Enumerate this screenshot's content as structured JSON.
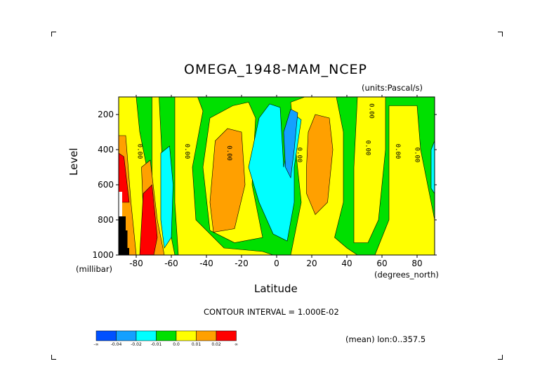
{
  "chart_data": {
    "type": "heatmap",
    "title": "OMEGA_1948-MAM_NCEP",
    "units": "(units:Pascal/s)",
    "xlabel": "Latitude",
    "x_unit_label": "(degrees_north)",
    "ylabel": "Level",
    "y_unit_label": "(millibar)",
    "xlim": [
      -90,
      90
    ],
    "ylim": [
      1000,
      100
    ],
    "x_ticks": [
      -80,
      -60,
      -40,
      -20,
      0,
      20,
      40,
      60,
      80
    ],
    "x_tick_labels": [
      "-80",
      "-60",
      "-40",
      "-20",
      "0",
      "20",
      "40",
      "60",
      "80"
    ],
    "y_ticks": [
      200,
      400,
      600,
      800,
      1000
    ],
    "y_tick_labels": [
      "200",
      "400",
      "600",
      "800",
      "1000"
    ],
    "contour_labels": [
      "0.00",
      "0.00",
      "0.00",
      "0.00",
      "0.00",
      "0.00",
      "0.00",
      "0.00"
    ],
    "contour_interval_text": "CONTOUR INTERVAL = 1.000E-02",
    "footer_text": "(mean) lon:0..357.5",
    "colorbar": {
      "colors": [
        "#0050ff",
        "#14a0ff",
        "#00ffff",
        "#00e000",
        "#ffff00",
        "#ffa000",
        "#ff0000"
      ],
      "labels": [
        "-∞",
        "-0.04",
        "-0.02",
        "-0.01",
        "0.0",
        "0.01",
        "0.02",
        "∞"
      ]
    },
    "regions": [
      {
        "name": "background",
        "value_class": "-0.01..0.0",
        "color": "#00e000"
      },
      {
        "name": "positive-band-sh-high",
        "value_class": "0.0..0.01",
        "color": "#ffff00"
      },
      {
        "name": "positive-core-sh-high",
        "value_class": "0.01..0.02",
        "color": "#ffa000"
      },
      {
        "name": "strong-positive-sh-high",
        "value_class": ">0.02",
        "color": "#ff0000"
      },
      {
        "name": "negative-core-sh-60",
        "value_class": "-0.02..-0.01",
        "color": "#00ffff"
      },
      {
        "name": "positive-core-sh-30",
        "value_class": "0.01..0.02",
        "color": "#ffa000"
      },
      {
        "name": "negative-core-equator",
        "value_class": "-0.02..-0.01",
        "color": "#00ffff"
      },
      {
        "name": "negative-peak-equator",
        "value_class": "-0.04..-0.02",
        "color": "#14a0ff"
      },
      {
        "name": "positive-core-nh-20",
        "value_class": "0.01..0.02",
        "color": "#ffa000"
      },
      {
        "name": "negative-edge-nh-90",
        "value_class": "-0.02..-0.01",
        "color": "#00ffff"
      },
      {
        "name": "missing-topography",
        "value_class": "undefined",
        "color": "#000000"
      }
    ]
  }
}
